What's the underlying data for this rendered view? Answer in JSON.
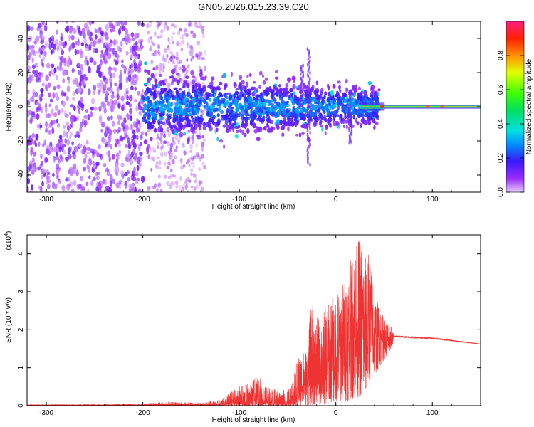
{
  "title": "GN05.2026.015.23.39.C20",
  "chart_data": [
    {
      "type": "heatmap",
      "name": "spectrogram",
      "xlabel": "Height of straight line (km)",
      "ylabel": "Frequency (Hz)",
      "xlim": [
        -320,
        150
      ],
      "ylim": [
        -50,
        50
      ],
      "xticks": [
        -300,
        -200,
        -100,
        0,
        100
      ],
      "yticks": [
        -40,
        -20,
        0,
        20,
        40
      ],
      "colorbar": {
        "label": "Normalized spectral amplitude",
        "range": [
          0,
          1
        ],
        "ticks": [
          0.0,
          0.2,
          0.4,
          0.6,
          0.8
        ]
      },
      "regions": [
        {
          "x": [
            -320,
            -200
          ],
          "desc": "sparse purple noise",
          "amplitude": 0.1
        },
        {
          "x": [
            -195,
            -135
          ],
          "desc": "faint purple noise",
          "amplitude": 0.05
        },
        {
          "x": [
            -200,
            40
          ],
          "desc": "blue/cyan band around 0 Hz",
          "amplitude": 0.25
        },
        {
          "x": [
            30,
            150
          ],
          "desc": "narrow green/red band at 0 Hz",
          "amplitude": 0.6
        }
      ]
    },
    {
      "type": "line",
      "name": "snr",
      "xlabel": "Height of straight line (km)",
      "ylabel": "SNR (10 * v/v)",
      "yscale_label": "(x10",
      "yscale_exp": "4",
      "yscale_close": ")",
      "xlim": [
        -320,
        150
      ],
      "ylim": [
        0,
        4.5
      ],
      "xticks": [
        -300,
        -200,
        -100,
        0,
        100
      ],
      "yticks": [
        0,
        1,
        2,
        3,
        4
      ],
      "color": "#ee3333",
      "envelope": {
        "x": [
          -320,
          -200,
          -180,
          -140,
          -120,
          -110,
          -100,
          -90,
          -80,
          -70,
          -60,
          -50,
          -45,
          -40,
          -30,
          -25,
          -20,
          -10,
          0,
          10,
          20,
          25,
          30,
          35,
          40,
          50,
          58,
          60,
          100,
          150
        ],
        "upper": [
          0.03,
          0.05,
          0.1,
          0.08,
          0.15,
          0.35,
          0.5,
          0.6,
          0.8,
          0.5,
          0.45,
          0.4,
          0.6,
          1.3,
          1.5,
          2.8,
          2.3,
          2.6,
          3.0,
          3.4,
          4.2,
          4.5,
          3.9,
          4.1,
          3.0,
          2.3,
          2.1,
          1.85,
          1.8,
          1.63
        ],
        "lower": [
          0.0,
          0.0,
          0.0,
          0.0,
          0.0,
          0.0,
          0.0,
          0.0,
          0.0,
          0.0,
          0.0,
          0.0,
          0.0,
          0.0,
          0.0,
          0.0,
          0.0,
          0.05,
          0.1,
          0.1,
          0.2,
          0.2,
          0.3,
          0.5,
          0.8,
          1.2,
          1.5,
          1.8,
          1.75,
          1.62
        ]
      }
    }
  ]
}
